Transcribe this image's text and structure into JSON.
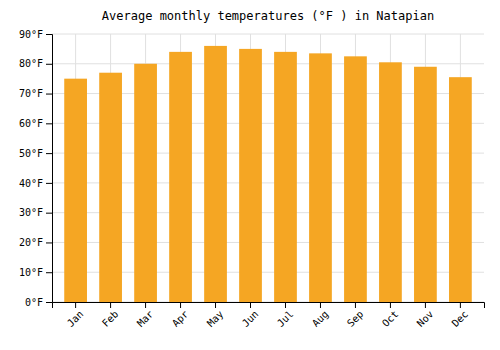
{
  "chart_data": {
    "type": "bar",
    "title": "Average monthly temperatures (°F ) in Natapian",
    "categories": [
      "Jan",
      "Feb",
      "Mar",
      "Apr",
      "May",
      "Jun",
      "Jul",
      "Aug",
      "Sep",
      "Oct",
      "Nov",
      "Dec"
    ],
    "values": [
      75,
      77,
      80,
      84,
      86,
      85,
      84,
      83.5,
      82.5,
      80.5,
      79,
      75.5
    ],
    "color": "#F5A623",
    "ylim": [
      0,
      90
    ],
    "yticks": [
      {
        "value": 0,
        "label": "0°F"
      },
      {
        "value": 10,
        "label": "10°F"
      },
      {
        "value": 20,
        "label": "20°F"
      },
      {
        "value": 30,
        "label": "30°F"
      },
      {
        "value": 40,
        "label": "40°F"
      },
      {
        "value": 50,
        "label": "50°F"
      },
      {
        "value": 60,
        "label": "60°F"
      },
      {
        "value": 70,
        "label": "70°F"
      },
      {
        "value": 80,
        "label": "80°F"
      },
      {
        "value": 90,
        "label": "90°F"
      }
    ],
    "grid": true
  }
}
